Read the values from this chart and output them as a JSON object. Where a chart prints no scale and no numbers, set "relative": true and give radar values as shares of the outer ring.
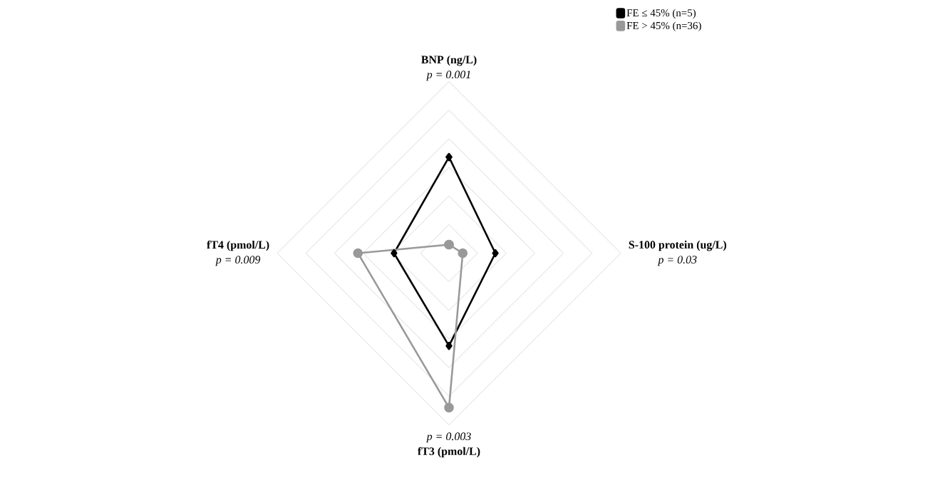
{
  "chart_data": {
    "type": "radar",
    "relative": true,
    "grid": true,
    "legend": "top right",
    "categories": [
      "BNP (ng/L)",
      "S-100 protein (ug/L)",
      "fT3 (pmol/L)",
      "fT4 (pmol/L)"
    ],
    "annotations": [
      "p = 0.001",
      "p = 0.03",
      "p = 0.003",
      "p = 0.009"
    ],
    "series": [
      {
        "name": "FE ≤ 45% (n=5)",
        "color": "#000000",
        "marker": "diamond",
        "values": [
          0.56,
          0.27,
          0.54,
          0.32
        ]
      },
      {
        "name": "FE > 45% (n=36)",
        "color": "#999999",
        "marker": "circle",
        "values": [
          0.05,
          0.08,
          0.9,
          0.53
        ]
      }
    ]
  }
}
